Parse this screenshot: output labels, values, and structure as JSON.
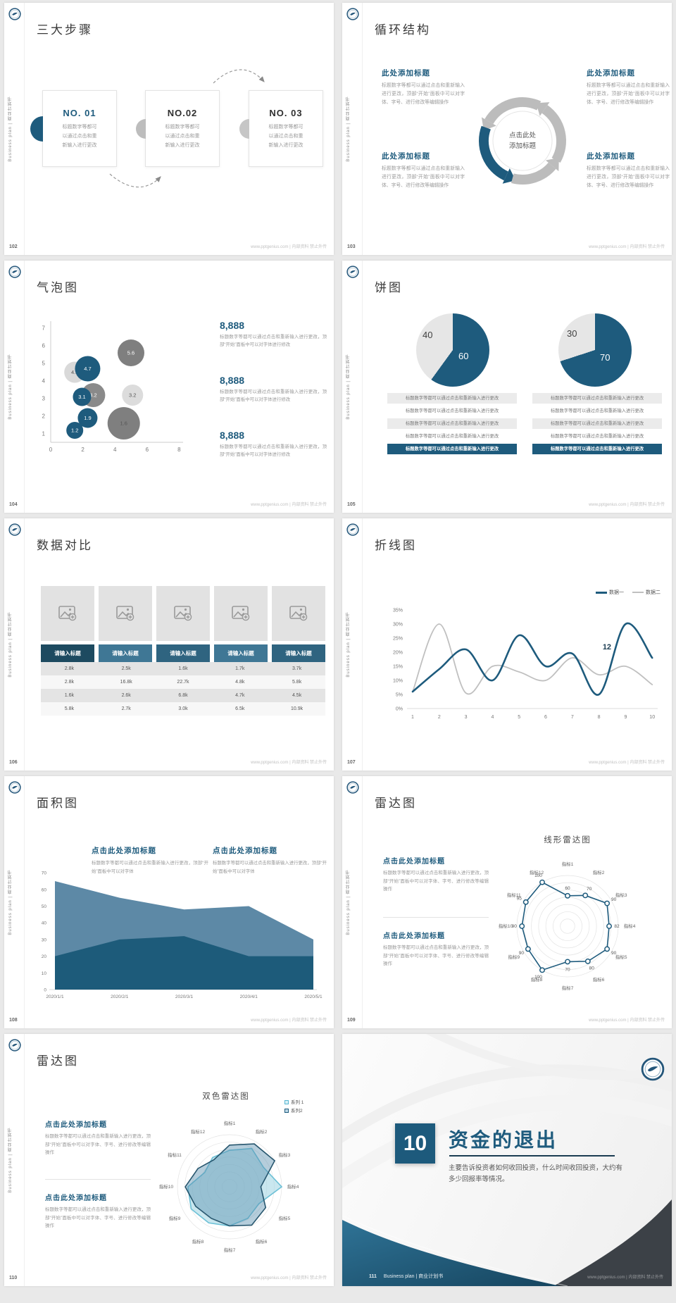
{
  "footer_url": "www.pptgenius.com | 内部资料 禁止外传",
  "sidebar_vertical_text": "Business plan | 商业计划书",
  "accent_color": "#1e5b7d",
  "slides": {
    "s102": {
      "page_no": "102",
      "title": "三大步骤",
      "cards": [
        {
          "no": "NO. 01",
          "l1": "标题数字等都可",
          "l2": "以通过点击和重",
          "l3": "新输入进行更改"
        },
        {
          "no": "NO.02",
          "l1": "标题数字等都可",
          "l2": "以通过点击和重",
          "l3": "新输入进行更改"
        },
        {
          "no": "NO. 03",
          "l1": "标题数字等都可",
          "l2": "以通过点击和重",
          "l3": "新输入进行更改"
        }
      ]
    },
    "s103": {
      "page_no": "103",
      "title": "循环结构",
      "heading": "此处添加标题",
      "body": "标题数字等都可以通过点击和重新输入进行更改，顶部“开始”面板中可以对字体、字号、进行修改等编辑操作",
      "center1": "点击此处",
      "center2": "添加标题"
    },
    "s104": {
      "page_no": "104",
      "title": "气泡图",
      "stats": [
        {
          "value": "8,888",
          "body": "标题数字等都可以通过点击和重新输入进行更改，顶部“开始”面板中可以对字体进行修改"
        },
        {
          "value": "8,888",
          "body": "标题数字等都可以通过点击和重新输入进行更改，顶部“开始”面板中可以对字体进行修改"
        },
        {
          "value": "8,888",
          "body": "标题数字等都可以通过点击和重新输入进行更改，顶部“开始”面板中可以对字体进行修改"
        }
      ]
    },
    "s105": {
      "page_no": "105",
      "title": "饼图",
      "row_text": "标题数字等都可以通过点击和重新输入进行更改",
      "pies": [
        {
          "big": "60",
          "small": "40"
        },
        {
          "big": "70",
          "small": "30"
        }
      ]
    },
    "s106": {
      "page_no": "106",
      "title": "数据对比",
      "header_label": "请输入标题",
      "rows": [
        [
          "2.8k",
          "2.5k",
          "1.6k",
          "1.7k",
          "3.7k"
        ],
        [
          "2.8k",
          "16.8k",
          "22.7k",
          "4.8k",
          "5.8k"
        ],
        [
          "1.6k",
          "2.6k",
          "6.8k",
          "4.7k",
          "4.5k"
        ],
        [
          "5.8k",
          "2.7k",
          "3.0k",
          "6.5k",
          "10.9k"
        ]
      ]
    },
    "s107": {
      "page_no": "107",
      "title": "折线图"
    },
    "s108": {
      "page_no": "108",
      "title": "面积图",
      "heading": "点击此处添加标题",
      "body": "标题数字等都可以通过点击和重新输入进行更改，顶部“开始”面板中可以对字体"
    },
    "s109": {
      "page_no": "109",
      "title": "雷达图",
      "chart_title": "线形雷达图",
      "heading": "点击此处添加标题",
      "body": "标题数字等都可以通过点击和重新输入进行更改，顶部“开始”面板中可以对字体、字号、进行修改等编辑操作"
    },
    "s110": {
      "page_no": "110",
      "title": "雷达图",
      "chart_title": "双色雷达图",
      "heading": "点击此处添加标题",
      "body": "标题数字等都可以通过点击和重新输入进行更改，顶部“开始”面板中可以对字体、字号、进行修改等编辑操作"
    },
    "s111": {
      "page_no": "111",
      "number": "10",
      "title": "资金的退出",
      "body": "主要告诉投资者如何收回投资，什么时间收回投资，大约有多少回报率等情况。",
      "brand": "Business plan | 商业计划书"
    }
  },
  "chart_data": [
    {
      "type": "scatter",
      "subtype": "bubble",
      "title": "气泡图",
      "xlim": [
        0,
        8
      ],
      "ylim": [
        1,
        7
      ],
      "xticks": [
        0,
        2,
        4,
        6,
        8
      ],
      "yticks": [
        1,
        2,
        3,
        4,
        5,
        6,
        7
      ],
      "points": [
        {
          "x": 1.5,
          "y": 4.5,
          "value": "4.5",
          "r": 15,
          "color": "#d9d9d9",
          "label_color": "#555555"
        },
        {
          "x": 5.0,
          "y": 5.6,
          "value": "5.6",
          "r": 19,
          "color": "#7f7f7f",
          "label_color": "#ffffff"
        },
        {
          "x": 2.65,
          "y": 3.2,
          "value": "3.2",
          "r": 17,
          "color": "#8a8a8a",
          "label_color": "#ffffff"
        },
        {
          "x": 5.1,
          "y": 3.2,
          "value": "3.2",
          "r": 15,
          "color": "#dcdcdc",
          "label_color": "#555555"
        },
        {
          "x": 4.55,
          "y": 1.6,
          "value": "1.6",
          "r": 23,
          "color": "#7f7f7f",
          "label_color": "#555555"
        },
        {
          "x": 2.3,
          "y": 4.7,
          "value": "4.7",
          "r": 18,
          "color": "#1e5b7d",
          "label_color": "#ffffff"
        },
        {
          "x": 1.95,
          "y": 3.1,
          "value": "3.1",
          "r": 13,
          "color": "#1e5b7d",
          "label_color": "#ffffff"
        },
        {
          "x": 2.3,
          "y": 1.9,
          "value": "1.9",
          "r": 14,
          "color": "#1e5b7d",
          "label_color": "#ffffff"
        },
        {
          "x": 1.5,
          "y": 1.2,
          "value": "1.2",
          "r": 12,
          "color": "#1e5b7d",
          "label_color": "#ffffff"
        }
      ]
    },
    {
      "type": "pie",
      "values": [
        60,
        40
      ],
      "labels": [
        "60",
        "40"
      ],
      "colors": [
        "#1e5b7d",
        "#e6e6e6"
      ]
    },
    {
      "type": "pie",
      "values": [
        70,
        30
      ],
      "labels": [
        "70",
        "30"
      ],
      "colors": [
        "#1e5b7d",
        "#e6e6e6"
      ]
    },
    {
      "type": "line",
      "title": "折线图",
      "x": [
        1,
        2,
        3,
        4,
        5,
        6,
        7,
        8,
        9,
        10
      ],
      "ylim": [
        0,
        35
      ],
      "yticks": [
        "0%",
        "5%",
        "10%",
        "15%",
        "20%",
        "25%",
        "30%",
        "35%"
      ],
      "series": [
        {
          "name": "数据一",
          "color": "#1e5b7d",
          "values": [
            6,
            14,
            21,
            10,
            26,
            15,
            19.5,
            5,
            30,
            18
          ]
        },
        {
          "name": "数据二",
          "color": "#c0c0c0",
          "values": [
            6,
            30,
            5.5,
            15,
            13,
            10,
            18,
            12,
            15,
            8.5
          ]
        }
      ],
      "annotation": {
        "text": "12",
        "x": 8.3,
        "y": 21
      },
      "legend_position": "top-right"
    },
    {
      "type": "area",
      "title": "面积图",
      "categories": [
        "2020/1/1",
        "2020/2/1",
        "2020/3/1",
        "2020/4/1",
        "2020/5/1"
      ],
      "ylim": [
        0,
        70
      ],
      "series": [
        {
          "name": "系列浅色",
          "color": "#5d89a6",
          "values": [
            65,
            55,
            48,
            50,
            30
          ]
        },
        {
          "name": "系列深色",
          "color": "#1d5b7a",
          "values": [
            20,
            30,
            32,
            20,
            20
          ]
        }
      ]
    },
    {
      "type": "radar",
      "title": "线形雷达图",
      "categories": [
        "指标1",
        "指标2",
        "指标3",
        "指标4",
        "指标5",
        "指标6",
        "指标7",
        "指标8",
        "指标9",
        "指标10",
        "指标11",
        "指标12"
      ],
      "max": 100,
      "series": [
        {
          "name": "指标",
          "color": "#1e5b7d",
          "values": [
            60,
            70,
            90,
            82,
            90,
            80,
            70,
            100,
            90,
            90,
            95,
            100
          ]
        }
      ],
      "show_point_labels": true
    },
    {
      "type": "radar",
      "title": "双色雷达图",
      "categories": [
        "指标1",
        "指标2",
        "指标3",
        "指标4",
        "指标5",
        "指标6",
        "指标7",
        "指标8",
        "指标9",
        "指标10",
        "指标11",
        "指标12"
      ],
      "max": 100,
      "series": [
        {
          "name": "系列 1",
          "stroke": "#6cc0d6",
          "fill": "rgba(165,215,228,0.60)",
          "values": [
            70,
            85,
            75,
            100,
            65,
            70,
            75,
            80,
            85,
            80,
            55,
            65
          ]
        },
        {
          "name": "系列2",
          "stroke": "#27566e",
          "fill": "rgba(90,145,175,0.45)",
          "values": [
            80,
            95,
            100,
            60,
            80,
            85,
            75,
            70,
            75,
            85,
            70,
            60
          ]
        }
      ]
    },
    {
      "type": "table",
      "title": "数据对比",
      "header": [
        "请输入标题",
        "请输入标题",
        "请输入标题",
        "请输入标题",
        "请输入标题"
      ],
      "rows": [
        [
          "2.8k",
          "2.5k",
          "1.6k",
          "1.7k",
          "3.7k"
        ],
        [
          "2.8k",
          "16.8k",
          "22.7k",
          "4.8k",
          "5.8k"
        ],
        [
          "1.6k",
          "2.6k",
          "6.8k",
          "4.7k",
          "4.5k"
        ],
        [
          "5.8k",
          "2.7k",
          "3.0k",
          "6.5k",
          "10.9k"
        ]
      ]
    }
  ]
}
